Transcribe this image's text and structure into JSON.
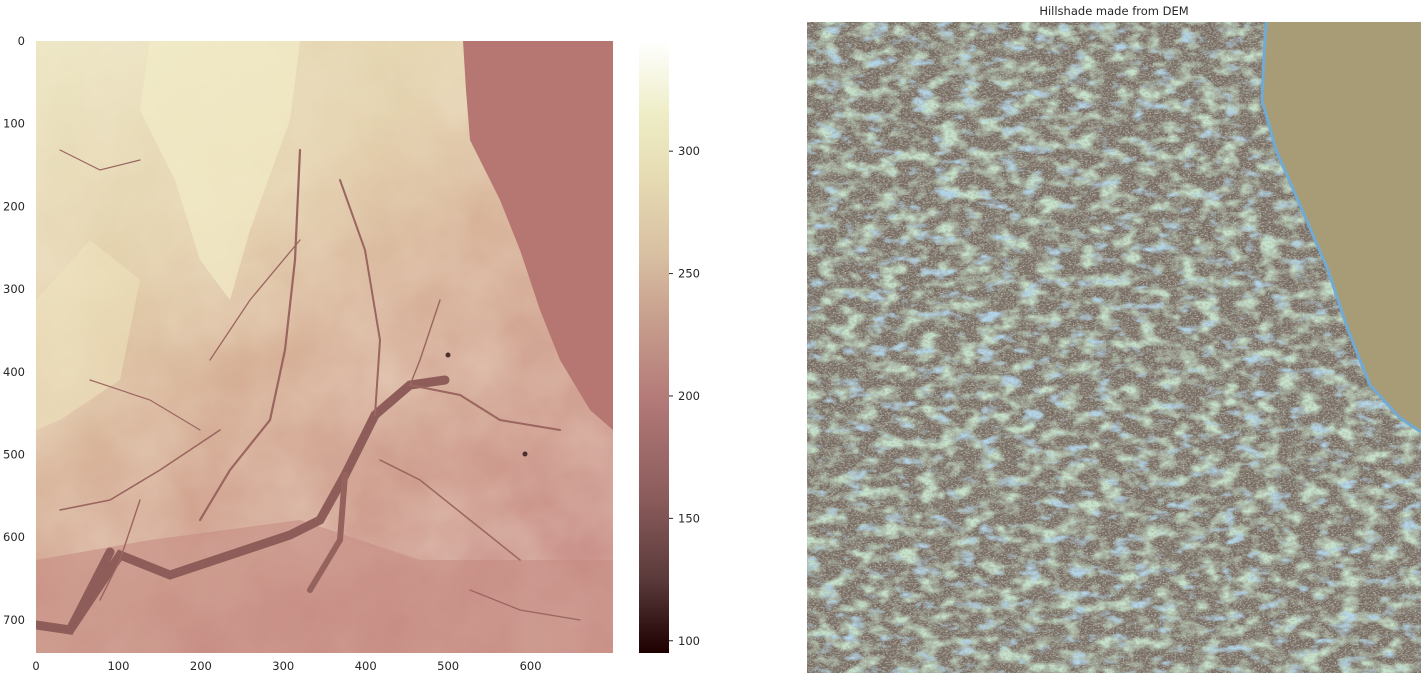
{
  "chart_data": [
    {
      "type": "heatmap",
      "title": "",
      "xlabel": "",
      "ylabel": "",
      "xlim": [
        0,
        700
      ],
      "ylim": [
        740,
        0
      ],
      "xticks": [
        0,
        100,
        200,
        300,
        400,
        500,
        600
      ],
      "yticks": [
        0,
        100,
        200,
        300,
        400,
        500,
        600,
        700
      ],
      "grid": false,
      "colormap": "pink",
      "colorbar": {
        "min": 95,
        "max": 345,
        "ticks": [
          100,
          150,
          200,
          250,
          300
        ],
        "colors": [
          "#1e0000",
          "#5a3a3a",
          "#7f5555",
          "#a86e6e",
          "#c09696",
          "#d2b69f",
          "#e5d7b2",
          "#eae9b8",
          "#ffffff"
        ]
      },
      "colors": {
        "upland": "#ece7c1",
        "mid": "#d9b999",
        "lowland": "#c9938a",
        "lake": "#b67671",
        "river": "#8a5a55"
      }
    },
    {
      "type": "heatmap",
      "title": "Hillshade made from DEM",
      "xlabel": "",
      "ylabel": "",
      "axes": "off",
      "grid": false,
      "colors": {
        "base": "#746a62",
        "green": "#8fc39a",
        "yellow": "#b7b98a",
        "blue": "#71aad3",
        "lake": "#a89c77"
      }
    }
  ]
}
